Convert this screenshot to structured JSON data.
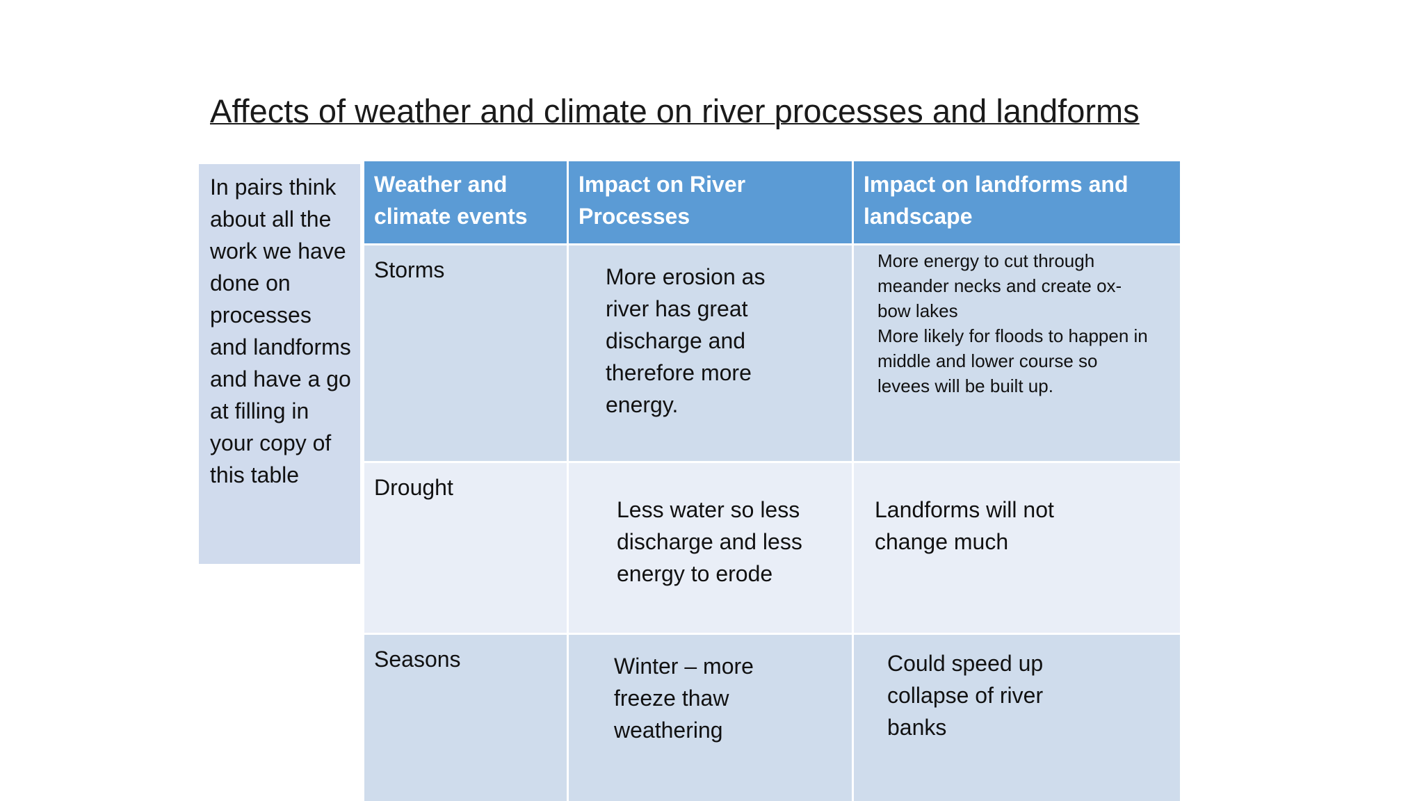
{
  "title": "Affects of weather and climate on river processes and landforms",
  "side_note": "In pairs think about all the work we have done on processes and landforms and have a go at filling in your copy of this table",
  "table": {
    "header": [
      "Weather and climate events",
      "Impact on River Processes",
      "Impact on landforms and landscape"
    ],
    "rows": [
      {
        "event": "Storms",
        "processes": "More erosion as river has great discharge and therefore more energy.",
        "landforms": [
          "More energy to cut through meander necks and create ox-bow lakes",
          "More likely for floods to happen in middle and lower course so levees will be built up."
        ]
      },
      {
        "event": "Drought",
        "processes": "Less water so less discharge and less energy to erode",
        "landforms": [
          "Landforms will not change much"
        ]
      },
      {
        "event": "Seasons",
        "processes": "Winter – more freeze thaw weathering",
        "landforms": [
          "Could speed up collapse of river banks"
        ]
      }
    ]
  }
}
